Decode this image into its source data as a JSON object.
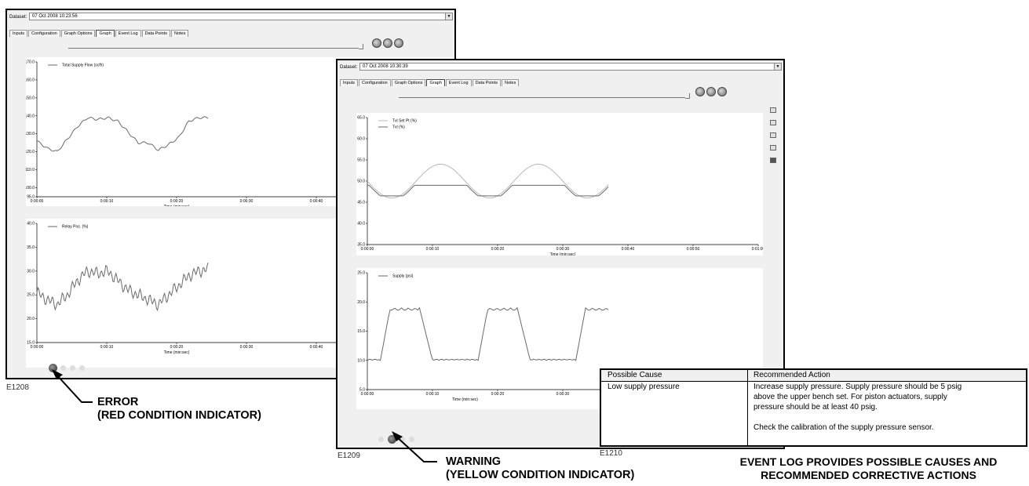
{
  "screen_error": {
    "dataset_label": "Dataset:",
    "dataset_value": "07 Oct 2008 10:23:56",
    "tabs": [
      "Inputs",
      "Configuration",
      "Graph Options",
      "Graph",
      "Event Log",
      "Data Points",
      "Notes"
    ],
    "active_tab": "Graph",
    "figure_code": "E1208",
    "charts": [
      {
        "title": "",
        "legend": "Total Supply Flow (scfh)",
        "ylabel": "Total Supply Flow (scfh)",
        "xlabel": "Time (min:sec)",
        "y_ticks": [
          "95.0",
          "100.0",
          "110.0",
          "120.0",
          "130.0",
          "140.0",
          "150.0",
          "160.0",
          "170.0"
        ],
        "x_ticks": [
          "0:00:00",
          "0:00:10",
          "0:00:20",
          "0:00:30",
          "0:00:40"
        ],
        "ylim": [
          95,
          170
        ]
      },
      {
        "title": "",
        "legend": "Relay Pos. (%)",
        "ylabel": "Relay Pos. (%)",
        "xlabel": "Time (min:sec)",
        "y_ticks": [
          "15.0",
          "20.0",
          "25.0",
          "30.0",
          "35.0",
          "40.0"
        ],
        "x_ticks": [
          "0:00:00",
          "0:00:10",
          "0:00:20",
          "0:00:30",
          "0:00:40"
        ],
        "ylim": [
          15,
          40
        ]
      }
    ]
  },
  "screen_warning": {
    "dataset_label": "Dataset:",
    "dataset_value": "07 Oct 2008 10:30:39",
    "tabs": [
      "Inputs",
      "Configuration",
      "Graph Options",
      "Graph",
      "Event Log",
      "Data Points",
      "Notes"
    ],
    "active_tab": "Graph",
    "figure_code": "E1209",
    "charts": [
      {
        "title": "",
        "legend": [
          "Tvl Set Pt (%)",
          "Tvl (%)"
        ],
        "ylabel": "Tvl Set Pt (%), Tvl (%)",
        "xlabel": "Time (min:sec)",
        "y_ticks": [
          "35.0",
          "40.0",
          "45.0",
          "50.0",
          "55.0",
          "60.0",
          "65.0"
        ],
        "x_ticks": [
          "0:00:00",
          "0:00:10",
          "0:00:20",
          "0:00:30",
          "0:00:40",
          "0:00:50",
          "0:01:00"
        ],
        "ylim": [
          35,
          65
        ]
      },
      {
        "title": "",
        "legend": "Supply (psi)",
        "ylabel": "Supply (psi)",
        "xlabel": "Time (min:sec)",
        "y_ticks": [
          "5.0",
          "10.0",
          "15.0",
          "20.0",
          "25.0"
        ],
        "x_ticks": [
          "0:00:00",
          "0:00:10",
          "0:00:20",
          "0:00:30"
        ],
        "ylim": [
          5,
          25
        ]
      }
    ]
  },
  "event_log": {
    "figure_code": "E1210",
    "col_cause": "Possible Cause",
    "col_action": "Recommended Action",
    "cause": "Low supply pressure",
    "action_lines": [
      "Increase supply pressure.  Supply pressure should be 5 psig",
      "above the upper bench set.  For piston actuators, supply",
      "pressure should be at least 40 psig."
    ],
    "action_note": "Check the calibration of the supply pressure sensor."
  },
  "callouts": {
    "error_line1": "ERROR",
    "error_line2": "(RED CONDITION INDICATOR)",
    "warning_line1": "WARNING",
    "warning_line2": "(YELLOW CONDITION INDICATOR)",
    "eventlog_line1": "EVENT LOG PROVIDES POSSIBLE CAUSES AND",
    "eventlog_line2": "RECOMMENDED CORRECTIVE ACTIONS"
  },
  "colors": {
    "trace": "#6a6a6a",
    "trace_light": "#b8b8b8",
    "window_bg": "#f0f0f0",
    "plot_bg": "#ffffff"
  }
}
